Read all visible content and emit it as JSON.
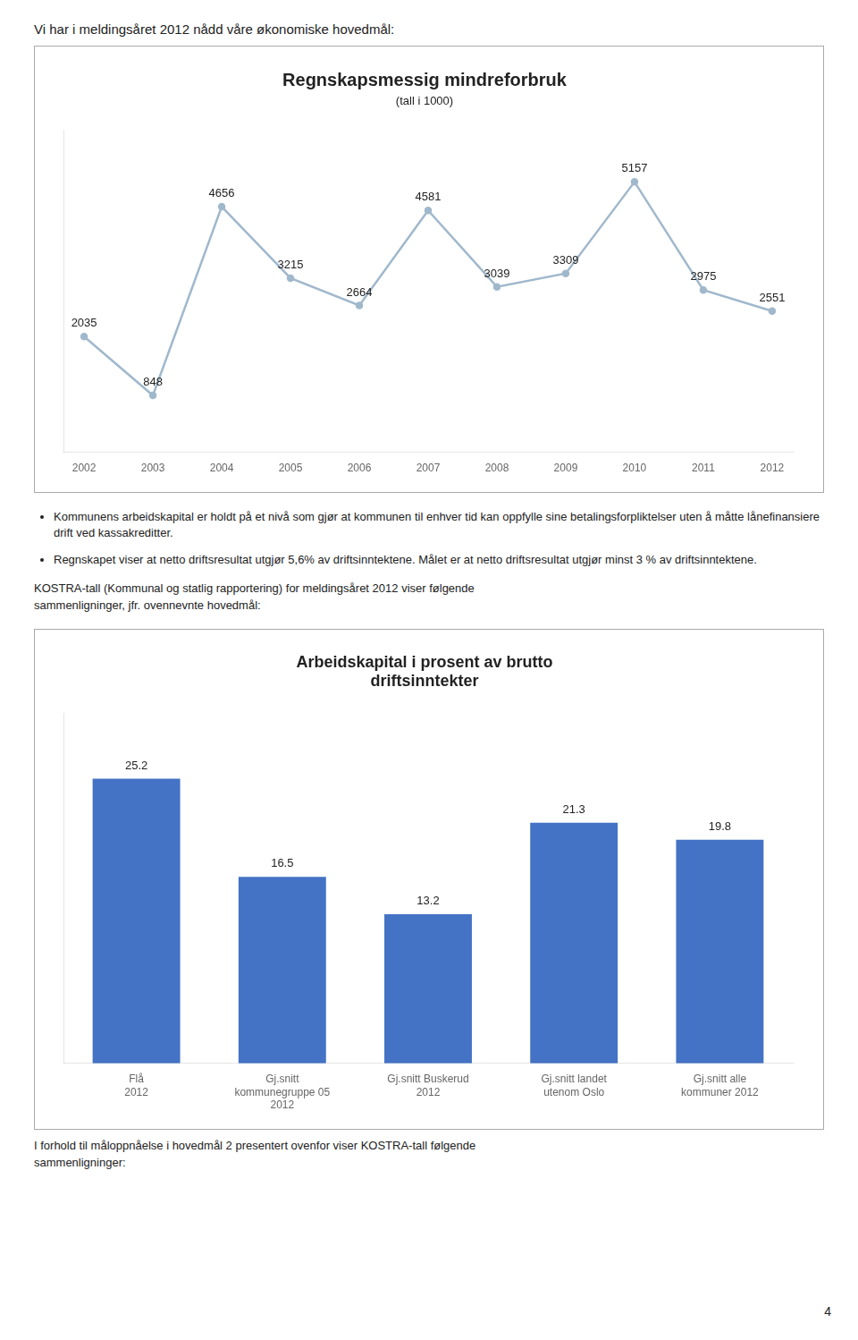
{
  "header": "Vi har i meldingsåret 2012 nådd våre økonomiske hovedmål:",
  "chart_data": [
    {
      "type": "line",
      "title": "Regnskapsmessig mindreforbruk",
      "subtitle": "(tall i 1000)",
      "x": [
        2002,
        2003,
        2004,
        2005,
        2006,
        2007,
        2008,
        2009,
        2010,
        2011,
        2012
      ],
      "values": [
        2035,
        848,
        4656,
        3215,
        2664,
        4581,
        3039,
        3309,
        5157,
        2975,
        2551
      ],
      "color": "#a0b8cc",
      "xlim": [
        2001.7,
        2012.3
      ],
      "xticks": [
        2002,
        2003,
        2004,
        2005,
        2006,
        2007,
        2008,
        2009,
        2010,
        2011,
        2012
      ],
      "ylim": [
        -300,
        6200
      ],
      "grid": false,
      "tick_labels": "x",
      "data_labels": true
    },
    {
      "type": "bar",
      "title": "Arbeidskapital i prosent av brutto\ndriftsinntekter",
      "categories": [
        "Flå\n2012",
        "Gj.snitt\nkommunegruppe 05\n2012",
        "Gj.snitt Buskerud\n2012",
        "Gj.snitt landet\nutenom Oslo",
        "Gj.snitt alle\nkommuner 2012"
      ],
      "values": [
        25.2,
        16.5,
        13.2,
        21.3,
        19.8
      ],
      "color": "#4472c4",
      "ylim": [
        0,
        31
      ],
      "grid": false,
      "tick_labels": "x",
      "data_labels": true
    }
  ],
  "bullets": [
    "Kommunens arbeidskapital er holdt på et nivå som gjør at kommunen til enhver tid kan oppfylle sine betalingsforpliktelser uten å måtte lånefinansiere drift ved kassakreditter.",
    "Regnskapet viser at netto driftsresultat utgjør 5,6% av driftsinntektene. Målet er at netto driftsresultat utgjør minst 3 % av driftsinntektene."
  ],
  "texts": [
    "KOSTRA-tall (Kommunal og statlig rapportering) for meldingsåret 2012 viser følgende",
    "sammenligninger, jfr. ovennevnte hovedmål:"
  ],
  "footer": [
    "I forhold til måloppnåelse i hovedmål 2 presentert ovenfor viser KOSTRA-tall følgende",
    "sammenligninger:"
  ],
  "page_number": "4"
}
